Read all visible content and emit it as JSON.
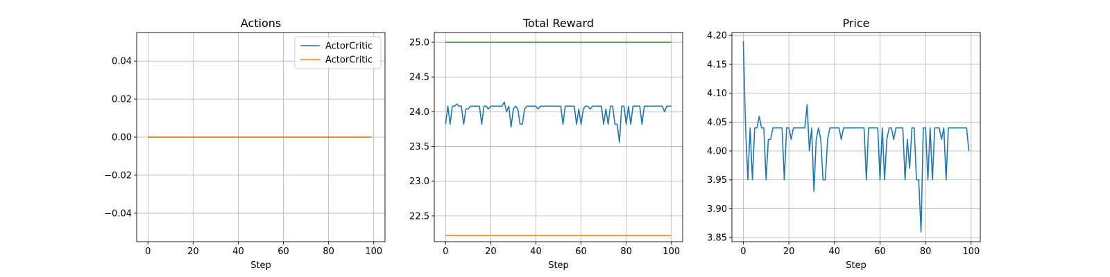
{
  "chart_data": [
    {
      "type": "line",
      "title": "Actions",
      "xlabel": "Step",
      "ylabel": "",
      "xlim": [
        -5,
        105
      ],
      "ylim": [
        -0.055,
        0.055
      ],
      "xticks": [
        0,
        20,
        40,
        60,
        80,
        100
      ],
      "yticks": [
        -0.04,
        -0.02,
        0.0,
        0.02,
        0.04
      ],
      "ytick_labels": [
        "−0.04",
        "−0.02",
        "0.00",
        "0.02",
        "0.04"
      ],
      "grid": true,
      "legend": {
        "placement": "top-right"
      },
      "series": [
        {
          "name": "ActorCritic",
          "color": "#1f77b4",
          "x": [
            0,
            99
          ],
          "y": [
            0,
            0
          ]
        },
        {
          "name": "ActorCritic",
          "color": "#ff7f0e",
          "x": [
            0,
            99
          ],
          "y": [
            0,
            0
          ]
        }
      ]
    },
    {
      "type": "line",
      "title": "Total Reward",
      "xlabel": "Step",
      "ylabel": "",
      "xlim": [
        -5,
        105
      ],
      "ylim": [
        22.13,
        25.14
      ],
      "xticks": [
        0,
        20,
        40,
        60,
        80,
        100
      ],
      "yticks": [
        22.5,
        23.0,
        23.5,
        24.0,
        24.5,
        25.0
      ],
      "ytick_labels": [
        "22.5",
        "23.0",
        "23.5",
        "24.0",
        "24.5",
        "25.0"
      ],
      "grid": true,
      "series": [
        {
          "color": "#2ca02c",
          "x": [
            0,
            100
          ],
          "y": [
            25.0,
            25.0
          ]
        },
        {
          "color": "#ff7f0e",
          "x": [
            0,
            100
          ],
          "y": [
            22.22,
            22.22
          ]
        },
        {
          "color": "#1f77b4",
          "x": [
            0,
            1,
            2,
            3,
            4,
            5,
            6,
            7,
            8,
            9,
            10,
            11,
            12,
            13,
            14,
            15,
            16,
            17,
            18,
            19,
            20,
            21,
            22,
            23,
            24,
            25,
            26,
            27,
            28,
            29,
            30,
            31,
            32,
            33,
            34,
            35,
            36,
            37,
            38,
            39,
            40,
            41,
            42,
            43,
            44,
            45,
            46,
            47,
            48,
            49,
            50,
            51,
            52,
            53,
            54,
            55,
            56,
            57,
            58,
            59,
            60,
            61,
            62,
            63,
            64,
            65,
            66,
            67,
            68,
            69,
            70,
            71,
            72,
            73,
            74,
            75,
            76,
            77,
            78,
            79,
            80,
            81,
            82,
            83,
            84,
            85,
            86,
            87,
            88,
            89,
            90,
            91,
            92,
            93,
            94,
            95,
            96,
            97,
            98,
            99,
            100
          ],
          "y": [
            23.82,
            24.08,
            23.82,
            24.08,
            24.08,
            24.11,
            24.08,
            24.08,
            23.82,
            24.04,
            24.04,
            24.08,
            24.08,
            24.08,
            24.08,
            24.08,
            23.82,
            24.08,
            24.08,
            24.04,
            24.08,
            24.08,
            24.08,
            24.08,
            24.08,
            24.08,
            24.14,
            24.0,
            24.08,
            23.78,
            24.04,
            24.08,
            24.04,
            23.82,
            23.82,
            24.04,
            24.08,
            24.08,
            24.08,
            24.08,
            24.08,
            24.04,
            24.08,
            24.08,
            24.08,
            24.08,
            24.08,
            24.08,
            24.08,
            24.08,
            24.08,
            24.08,
            23.82,
            24.08,
            24.08,
            24.08,
            24.08,
            24.08,
            23.82,
            24.04,
            23.82,
            24.04,
            24.08,
            24.08,
            24.04,
            24.08,
            24.08,
            24.08,
            24.08,
            24.08,
            23.82,
            24.04,
            23.82,
            24.08,
            24.08,
            23.82,
            23.82,
            23.56,
            24.08,
            24.08,
            23.82,
            24.08,
            23.82,
            24.08,
            24.08,
            24.08,
            24.08,
            23.82,
            24.08,
            24.08,
            24.08,
            24.08,
            24.08,
            24.08,
            24.08,
            24.08,
            24.08,
            24.0,
            24.08,
            24.08,
            24.08
          ]
        }
      ]
    },
    {
      "type": "line",
      "title": "Price",
      "xlabel": "Step",
      "ylabel": "",
      "xlim": [
        -5,
        104
      ],
      "ylim": [
        3.843,
        4.205
      ],
      "xticks": [
        0,
        20,
        40,
        60,
        80,
        100
      ],
      "yticks": [
        3.85,
        3.9,
        3.95,
        4.0,
        4.05,
        4.1,
        4.15,
        4.2
      ],
      "ytick_labels": [
        "3.85",
        "3.90",
        "3.95",
        "4.00",
        "4.05",
        "4.10",
        "4.15",
        "4.20"
      ],
      "grid": true,
      "series": [
        {
          "color": "#1f77b4",
          "x": [
            0,
            1,
            2,
            3,
            4,
            5,
            6,
            7,
            8,
            9,
            10,
            11,
            12,
            13,
            14,
            15,
            16,
            17,
            18,
            19,
            20,
            21,
            22,
            23,
            24,
            25,
            26,
            27,
            28,
            29,
            30,
            31,
            32,
            33,
            34,
            35,
            36,
            37,
            38,
            39,
            40,
            41,
            42,
            43,
            44,
            45,
            46,
            47,
            48,
            49,
            50,
            51,
            52,
            53,
            54,
            55,
            56,
            57,
            58,
            59,
            60,
            61,
            62,
            63,
            64,
            65,
            66,
            67,
            68,
            69,
            70,
            71,
            72,
            73,
            74,
            75,
            76,
            77,
            78,
            79,
            80,
            81,
            82,
            83,
            84,
            85,
            86,
            87,
            88,
            89,
            90,
            91,
            92,
            93,
            94,
            95,
            96,
            97,
            98,
            99
          ],
          "y": [
            4.19,
            4.04,
            3.95,
            4.04,
            3.95,
            4.04,
            4.04,
            4.06,
            4.04,
            4.04,
            3.95,
            4.02,
            4.02,
            4.04,
            4.04,
            4.04,
            4.04,
            4.04,
            3.95,
            4.04,
            4.04,
            4.02,
            4.04,
            4.04,
            4.04,
            4.04,
            4.04,
            4.04,
            4.08,
            4.0,
            4.04,
            3.93,
            4.02,
            4.04,
            4.02,
            3.95,
            3.95,
            4.02,
            4.04,
            4.04,
            4.04,
            4.04,
            4.04,
            4.02,
            4.04,
            4.04,
            4.04,
            4.04,
            4.04,
            4.04,
            4.04,
            4.04,
            4.04,
            4.04,
            3.95,
            4.04,
            4.04,
            4.04,
            4.04,
            4.04,
            3.95,
            4.04,
            3.95,
            4.02,
            4.04,
            4.04,
            4.02,
            4.04,
            4.04,
            4.04,
            4.04,
            3.95,
            4.02,
            3.97,
            4.04,
            4.04,
            3.95,
            3.95,
            3.86,
            4.04,
            4.04,
            3.95,
            4.04,
            3.95,
            4.04,
            4.04,
            4.04,
            4.02,
            4.04,
            3.95,
            4.04,
            4.04,
            4.04,
            4.04,
            4.04,
            4.04,
            4.04,
            4.04,
            4.04,
            4.0
          ]
        }
      ]
    }
  ]
}
